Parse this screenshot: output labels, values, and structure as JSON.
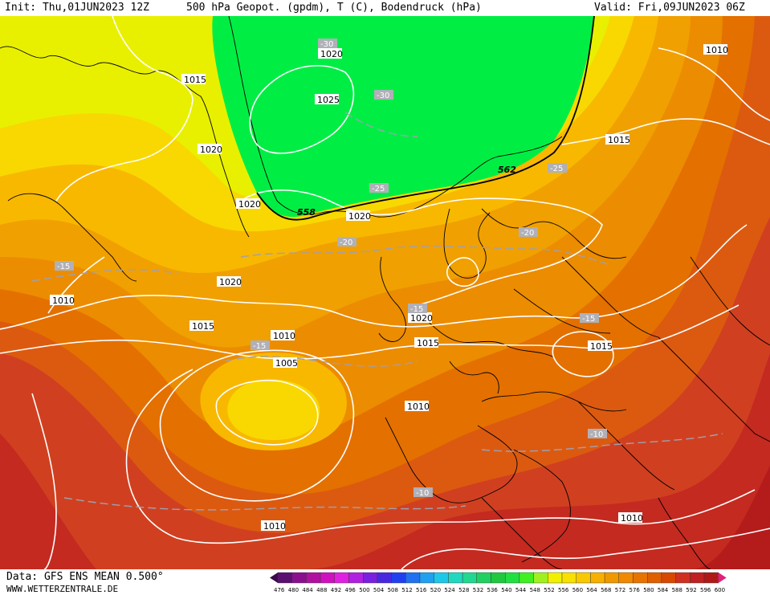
{
  "header": {
    "init": "Init: Thu,01JUN2023 12Z",
    "title": "500 hPa Geopot. (gpdm), T (C), Bodendruck (hPa)",
    "valid": "Valid: Fri,09JUN2023 06Z"
  },
  "footer": {
    "source": "Data: GFS ENS MEAN 0.500°",
    "site": "WWW.WETTERZENTRALE.DE"
  },
  "colorbar": {
    "ticks": [
      "476",
      "480",
      "484",
      "488",
      "492",
      "496",
      "500",
      "504",
      "508",
      "512",
      "516",
      "520",
      "524",
      "528",
      "532",
      "536",
      "540",
      "544",
      "548",
      "552",
      "556",
      "560",
      "564",
      "568",
      "572",
      "576",
      "580",
      "584",
      "588",
      "592",
      "596",
      "600"
    ],
    "colors": [
      "#3a0a4a",
      "#5b0f70",
      "#8a0f8f",
      "#b0109f",
      "#d010c0",
      "#e020e0",
      "#b020e0",
      "#7a20e0",
      "#4a28e0",
      "#2040f0",
      "#2070f0",
      "#20a0f0",
      "#20c8e8",
      "#20d8c0",
      "#20d890",
      "#20d060",
      "#20c840",
      "#20e040",
      "#40f020",
      "#a0f020",
      "#f0f000",
      "#f8e000",
      "#f8c800",
      "#f8b000",
      "#f09800",
      "#f08800",
      "#e87400",
      "#e06000",
      "#d84800",
      "#d03020",
      "#c02020",
      "#b01818",
      "#e0207a"
    ]
  },
  "map": {
    "fields": {
      "h558": "#00ee44",
      "h562": "#e8f000",
      "h566": "#f8d800",
      "h570": "#f8b800",
      "h574": "#f0a000",
      "h578": "#ec8c00",
      "h582": "#e47000",
      "h586": "#dc5a10",
      "h590": "#d04020",
      "h594": "#c42a20",
      "h598": "#b41c1c"
    },
    "geopotential_labels": [
      {
        "text": "558",
        "rotate": -8
      },
      {
        "text": "562",
        "rotate": 0
      }
    ],
    "isobar_labels": [
      "1015",
      "1020",
      "1025",
      "1020",
      "1020",
      "1020",
      "1010",
      "1015",
      "1010",
      "1005",
      "1020",
      "1015",
      "1010",
      "1015",
      "1015",
      "1010",
      "1010",
      "1010",
      "1020"
    ],
    "temperature_labels": [
      "-30",
      "-30",
      "-25",
      "-25",
      "-20",
      "-20",
      "-15",
      "-15",
      "-15",
      "-15",
      "-10",
      "-10"
    ]
  }
}
